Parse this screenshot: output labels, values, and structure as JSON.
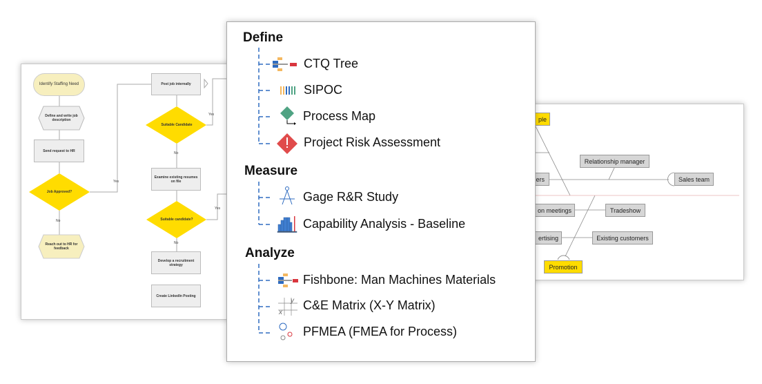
{
  "flowchart": {
    "start": "Identify Staffing Need",
    "define": "Define and write job description",
    "send": "Send request to HR",
    "approved": "Job Approved?",
    "reach": "Reach out to HR for feedback",
    "post": "Post job internally",
    "suitable1": "Suitable Candidate",
    "examine": "Examine existing resumes on file",
    "suitable2": "Suitable candidate?",
    "develop": "Develop a recruitment strategy",
    "linkedin": "Create LinkedIn Posting",
    "yes": "Yes",
    "no": "No"
  },
  "fishbone": {
    "people": "ple",
    "relationship": "Relationship manager",
    "customers": "ers",
    "sales": "Sales team",
    "meetings": "on meetings",
    "tradeshow": "Tradeshow",
    "advertising": "ertising",
    "existing": "Existing customers",
    "promotion": "Promotion"
  },
  "menu": {
    "sections": [
      {
        "title": "Define",
        "items": [
          "CTQ Tree",
          "SIPOC",
          "Process Map",
          "Project Risk Assessment"
        ]
      },
      {
        "title": "Measure",
        "items": [
          "Gage R&R Study",
          "Capability Analysis - Baseline"
        ]
      },
      {
        "title": "Analyze",
        "items": [
          "Fishbone: Man Machines Materials",
          "C&E Matrix (X-Y Matrix)",
          "PFMEA (FMEA for Process)"
        ]
      }
    ]
  },
  "colors": {
    "tree_line": "#2e6bc0",
    "decision": "#ffdc00",
    "terminal": "#f7efbe",
    "risk": "#e04b4b",
    "process_map": "#4fa383"
  }
}
